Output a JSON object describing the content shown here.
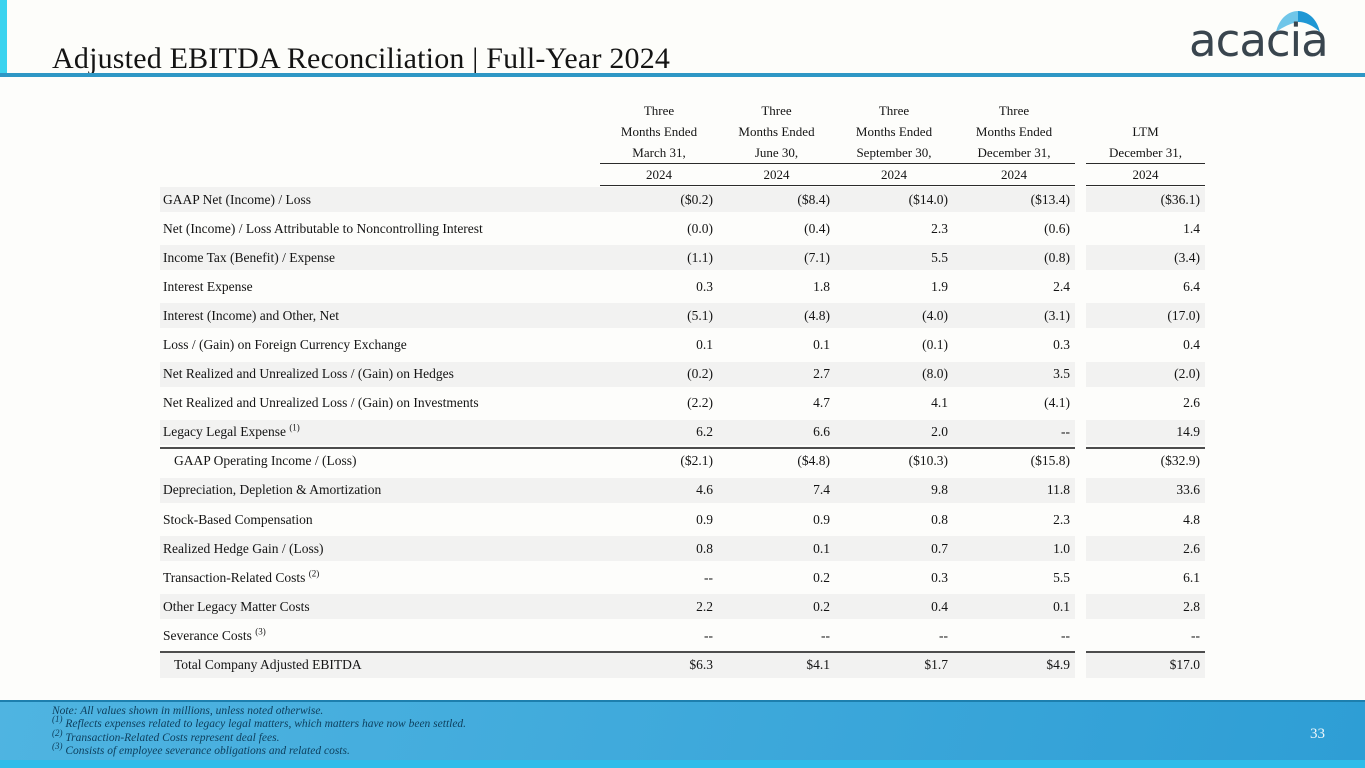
{
  "header": {
    "title": "Adjusted EBITDA Reconciliation | Full-Year 2024",
    "logo_text": "acacia"
  },
  "table": {
    "columns": [
      {
        "line1": "Three",
        "line2": "Months Ended",
        "line3": "March 31,",
        "year": "2024"
      },
      {
        "line1": "Three",
        "line2": "Months Ended",
        "line3": "June 30,",
        "year": "2024"
      },
      {
        "line1": "Three",
        "line2": "Months Ended",
        "line3": "September 30,",
        "year": "2024"
      },
      {
        "line1": "Three",
        "line2": "Months Ended",
        "line3": "December 31,",
        "year": "2024"
      },
      {
        "line1": "",
        "line2": "LTM",
        "line3": "December 31,",
        "year": "2024"
      }
    ],
    "rows": [
      {
        "label": "GAAP Net (Income) / Loss",
        "sup": "",
        "values": [
          "($0.2)",
          "($8.4)",
          "($14.0)",
          "($13.4)",
          "($36.1)"
        ],
        "shaded": true,
        "indent": false,
        "border_top": false
      },
      {
        "label": "Net (Income) / Loss Attributable to Noncontrolling Interest",
        "sup": "",
        "values": [
          "(0.0)",
          "(0.4)",
          "2.3",
          "(0.6)",
          "1.4"
        ],
        "shaded": false,
        "indent": false,
        "border_top": false
      },
      {
        "label": "Income Tax (Benefit) / Expense",
        "sup": "",
        "values": [
          "(1.1)",
          "(7.1)",
          "5.5",
          "(0.8)",
          "(3.4)"
        ],
        "shaded": true,
        "indent": false,
        "border_top": false
      },
      {
        "label": "Interest Expense",
        "sup": "",
        "values": [
          "0.3",
          "1.8",
          "1.9",
          "2.4",
          "6.4"
        ],
        "shaded": false,
        "indent": false,
        "border_top": false
      },
      {
        "label": "Interest (Income) and Other, Net",
        "sup": "",
        "values": [
          "(5.1)",
          "(4.8)",
          "(4.0)",
          "(3.1)",
          "(17.0)"
        ],
        "shaded": true,
        "indent": false,
        "border_top": false
      },
      {
        "label": "Loss / (Gain) on Foreign Currency Exchange",
        "sup": "",
        "values": [
          "0.1",
          "0.1",
          "(0.1)",
          "0.3",
          "0.4"
        ],
        "shaded": false,
        "indent": false,
        "border_top": false
      },
      {
        "label": "Net Realized and Unrealized Loss / (Gain) on Hedges",
        "sup": "",
        "values": [
          "(0.2)",
          "2.7",
          "(8.0)",
          "3.5",
          "(2.0)"
        ],
        "shaded": true,
        "indent": false,
        "border_top": false
      },
      {
        "label": "Net Realized and Unrealized Loss / (Gain) on Investments",
        "sup": "",
        "values": [
          "(2.2)",
          "4.7",
          "4.1",
          "(4.1)",
          "2.6"
        ],
        "shaded": false,
        "indent": false,
        "border_top": false
      },
      {
        "label": "Legacy Legal Expense",
        "sup": "(1)",
        "values": [
          "6.2",
          "6.6",
          "2.0",
          "--",
          "14.9"
        ],
        "shaded": true,
        "indent": false,
        "border_top": false
      },
      {
        "label": "GAAP Operating Income / (Loss)",
        "sup": "",
        "values": [
          "($2.1)",
          "($4.8)",
          "($10.3)",
          "($15.8)",
          "($32.9)"
        ],
        "shaded": false,
        "indent": true,
        "border_top": true
      },
      {
        "label": "Depreciation, Depletion & Amortization",
        "sup": "",
        "values": [
          "4.6",
          "7.4",
          "9.8",
          "11.8",
          "33.6"
        ],
        "shaded": true,
        "indent": false,
        "border_top": false
      },
      {
        "label": "Stock-Based Compensation",
        "sup": "",
        "values": [
          "0.9",
          "0.9",
          "0.8",
          "2.3",
          "4.8"
        ],
        "shaded": false,
        "indent": false,
        "border_top": false
      },
      {
        "label": "Realized Hedge Gain / (Loss)",
        "sup": "",
        "values": [
          "0.8",
          "0.1",
          "0.7",
          "1.0",
          "2.6"
        ],
        "shaded": true,
        "indent": false,
        "border_top": false
      },
      {
        "label": "Transaction-Related Costs",
        "sup": "(2)",
        "values": [
          "--",
          "0.2",
          "0.3",
          "5.5",
          "6.1"
        ],
        "shaded": false,
        "indent": false,
        "border_top": false
      },
      {
        "label": "Other Legacy Matter Costs",
        "sup": "",
        "values": [
          "2.2",
          "0.2",
          "0.4",
          "0.1",
          "2.8"
        ],
        "shaded": true,
        "indent": false,
        "border_top": false
      },
      {
        "label": "Severance Costs",
        "sup": "(3)",
        "values": [
          "--",
          "--",
          "--",
          "--",
          "--"
        ],
        "shaded": false,
        "indent": false,
        "border_top": false
      },
      {
        "label": "Total Company Adjusted EBITDA",
        "sup": "",
        "values": [
          "$6.3",
          "$4.1",
          "$1.7",
          "$4.9",
          "$17.0"
        ],
        "shaded": true,
        "indent": true,
        "border_top": true
      }
    ]
  },
  "footer": {
    "notes": [
      {
        "sup": "",
        "text": "Note: All values shown in millions, unless noted otherwise."
      },
      {
        "sup": "(1)",
        "text": "Reflects expenses related to legacy legal matters, which matters have now been settled."
      },
      {
        "sup": "(2)",
        "text": "Transaction-Related Costs represent deal fees."
      },
      {
        "sup": "(3)",
        "text": "Consists of employee severance obligations and related costs."
      }
    ],
    "page_number": "33"
  },
  "colors": {
    "accent_cyan": "#3bd3ef",
    "header_rule": "#2e97c5",
    "row_shade": "#f2f2f1",
    "thick_rule": "#4d4d4d",
    "footer_grad_start": "#4fb4e1",
    "footer_grad_end": "#2e9ed5",
    "footer_topline": "#1d7fae",
    "footer_strip": "#2cbde9",
    "note_text": "#0d3e5c",
    "logo_text": "#39454e",
    "dome_light": "#70c6e9",
    "dome_dark": "#1f97d4"
  }
}
